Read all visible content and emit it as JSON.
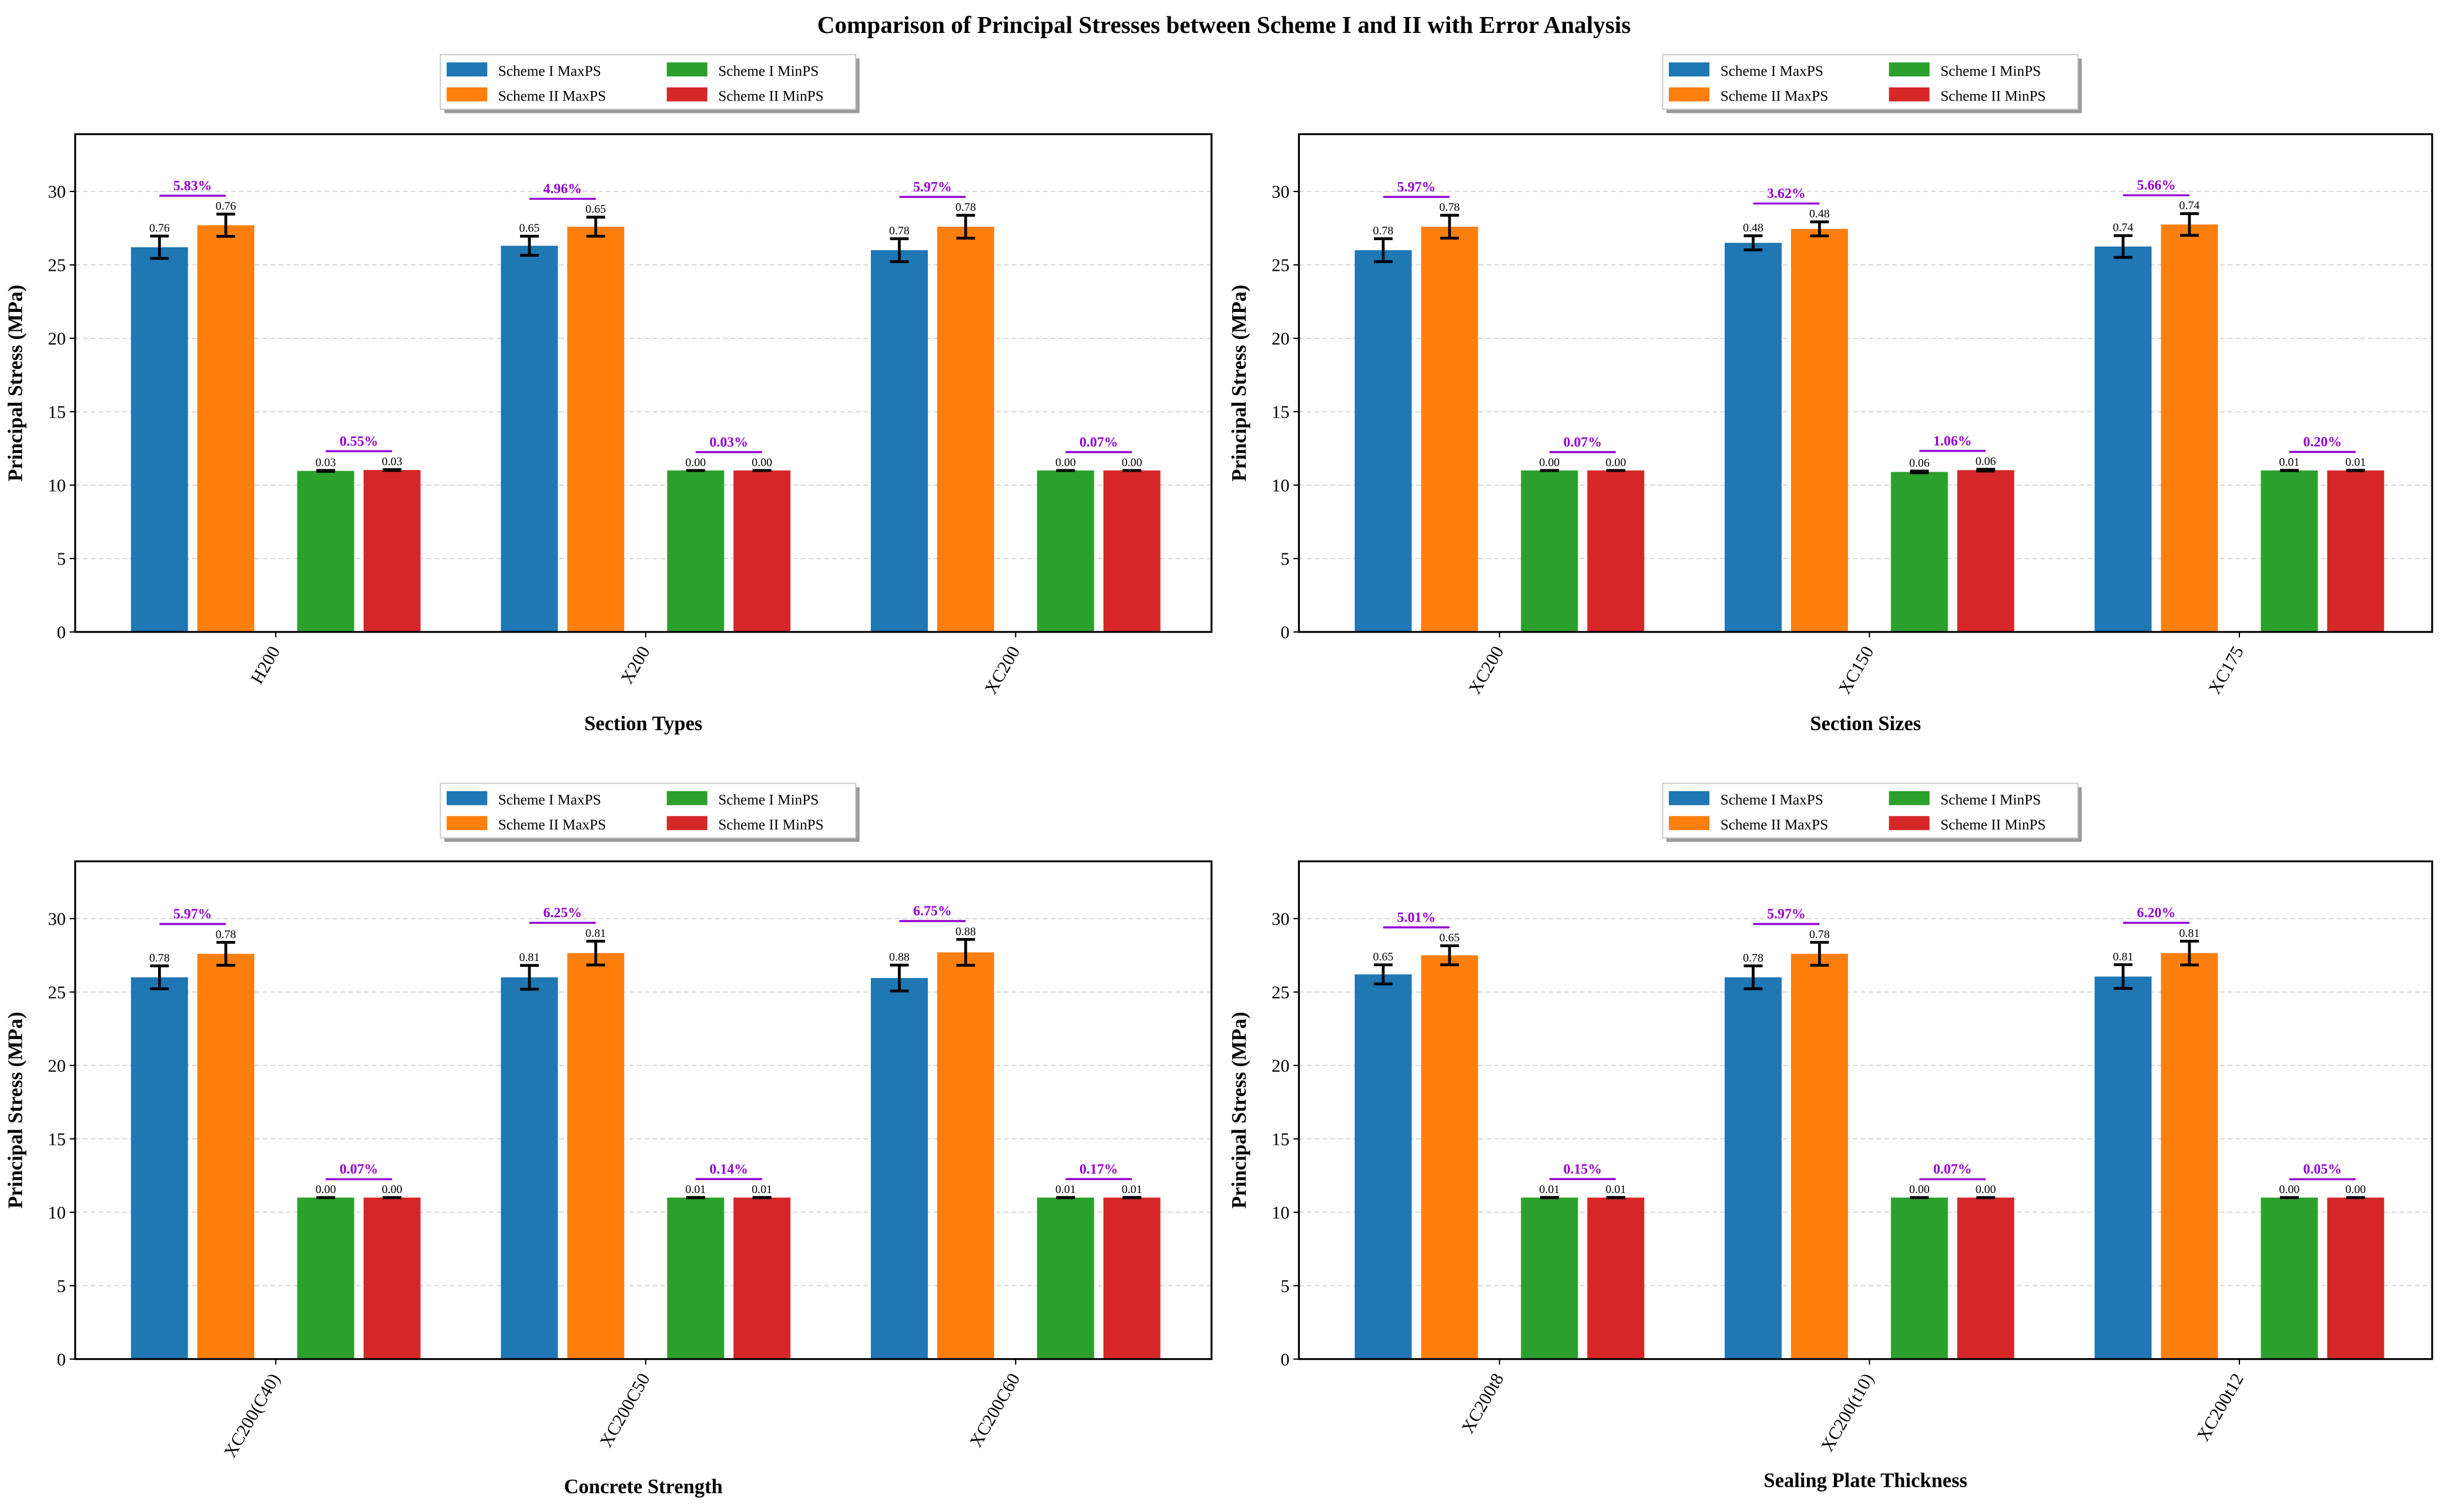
{
  "chart_data": {
    "title": "Comparison of Principal Stresses between Scheme I and II with Error Analysis",
    "type": "bar",
    "colors": {
      "s1max": "#1f77b4",
      "s2max": "#ff7f0e",
      "s1min": "#2ca02c",
      "s2min": "#d62728",
      "pct": "#9400d3"
    },
    "legend": [
      "Scheme I MaxPS",
      "Scheme II MaxPS",
      "Scheme I MinPS",
      "Scheme II MinPS"
    ],
    "legend_placement": "top-center",
    "ylabel": "Principal Stress (MPa)",
    "ylim": [
      0,
      33.9
    ],
    "yticks": [
      "0",
      "5",
      "10",
      "15",
      "20",
      "25",
      "30"
    ],
    "grid": "y dashed",
    "panels": [
      {
        "xlabel": "Section Types",
        "categories": [
          "H200",
          "X200",
          "XC200"
        ],
        "series": [
          {
            "name": "Scheme I MaxPS",
            "values": [
              26.2,
              26.3,
              26.0
            ],
            "errors": [
              0.76,
              0.65,
              0.78
            ],
            "labels": [
              "0.76",
              "0.65",
              "0.78"
            ]
          },
          {
            "name": "Scheme II MaxPS",
            "values": [
              27.7,
              27.6,
              27.6
            ],
            "errors": [
              0.76,
              0.65,
              0.78
            ],
            "labels": [
              "0.76",
              "0.65",
              "0.78"
            ]
          },
          {
            "name": "Scheme I MinPS",
            "values": [
              10.97,
              11.0,
              11.0
            ],
            "errors": [
              0.03,
              0.0,
              0.0
            ],
            "labels": [
              "0.03",
              "0.00",
              "0.00"
            ]
          },
          {
            "name": "Scheme II MinPS",
            "values": [
              11.03,
              11.0,
              11.0
            ],
            "errors": [
              0.03,
              0.0,
              0.0
            ],
            "labels": [
              "0.03",
              "0.00",
              "0.00"
            ]
          }
        ],
        "max_diff": [
          "5.83%",
          "4.96%",
          "5.97%"
        ],
        "min_diff": [
          "0.55%",
          "0.03%",
          "0.07%"
        ]
      },
      {
        "xlabel": "Section Sizes",
        "categories": [
          "XC200",
          "XC150",
          "XC175"
        ],
        "series": [
          {
            "name": "Scheme I MaxPS",
            "values": [
              26.0,
              26.5,
              26.25
            ],
            "errors": [
              0.78,
              0.48,
              0.74
            ],
            "labels": [
              "0.78",
              "0.48",
              "0.74"
            ]
          },
          {
            "name": "Scheme II MaxPS",
            "values": [
              27.6,
              27.45,
              27.75
            ],
            "errors": [
              0.78,
              0.48,
              0.74
            ],
            "labels": [
              "0.78",
              "0.48",
              "0.74"
            ]
          },
          {
            "name": "Scheme I MinPS",
            "values": [
              11.0,
              10.9,
              11.0
            ],
            "errors": [
              0.0,
              0.06,
              0.01
            ],
            "labels": [
              "0.00",
              "0.06",
              "0.01"
            ]
          },
          {
            "name": "Scheme II MinPS",
            "values": [
              11.0,
              11.02,
              11.0
            ],
            "errors": [
              0.0,
              0.06,
              0.01
            ],
            "labels": [
              "0.00",
              "0.06",
              "0.01"
            ]
          }
        ],
        "max_diff": [
          "5.97%",
          "3.62%",
          "5.66%"
        ],
        "min_diff": [
          "0.07%",
          "1.06%",
          "0.20%"
        ]
      },
      {
        "xlabel": "Concrete Strength",
        "categories": [
          "XC200(C40)",
          "XC200C50",
          "XC200C60"
        ],
        "series": [
          {
            "name": "Scheme I MaxPS",
            "values": [
              26.0,
              26.0,
              25.95
            ],
            "errors": [
              0.78,
              0.81,
              0.88
            ],
            "labels": [
              "0.78",
              "0.81",
              "0.88"
            ]
          },
          {
            "name": "Scheme II MaxPS",
            "values": [
              27.6,
              27.65,
              27.7
            ],
            "errors": [
              0.78,
              0.81,
              0.88
            ],
            "labels": [
              "0.78",
              "0.81",
              "0.88"
            ]
          },
          {
            "name": "Scheme I MinPS",
            "values": [
              11.0,
              11.0,
              11.0
            ],
            "errors": [
              0.0,
              0.01,
              0.01
            ],
            "labels": [
              "0.00",
              "0.01",
              "0.01"
            ]
          },
          {
            "name": "Scheme II MinPS",
            "values": [
              11.0,
              11.0,
              11.0
            ],
            "errors": [
              0.0,
              0.01,
              0.01
            ],
            "labels": [
              "0.00",
              "0.01",
              "0.01"
            ]
          }
        ],
        "max_diff": [
          "5.97%",
          "6.25%",
          "6.75%"
        ],
        "min_diff": [
          "0.07%",
          "0.14%",
          "0.17%"
        ]
      },
      {
        "xlabel": "Sealing Plate Thickness",
        "categories": [
          "XC200t8",
          "XC200(t10)",
          "XC200t12"
        ],
        "series": [
          {
            "name": "Scheme I MaxPS",
            "values": [
              26.2,
              26.0,
              26.05
            ],
            "errors": [
              0.65,
              0.78,
              0.81
            ],
            "labels": [
              "0.65",
              "0.78",
              "0.81"
            ]
          },
          {
            "name": "Scheme II MaxPS",
            "values": [
              27.5,
              27.6,
              27.65
            ],
            "errors": [
              0.65,
              0.78,
              0.81
            ],
            "labels": [
              "0.65",
              "0.78",
              "0.81"
            ]
          },
          {
            "name": "Scheme I MinPS",
            "values": [
              11.0,
              11.0,
              11.0
            ],
            "errors": [
              0.01,
              0.0,
              0.0
            ],
            "labels": [
              "0.01",
              "0.00",
              "0.00"
            ]
          },
          {
            "name": "Scheme II MinPS",
            "values": [
              11.0,
              11.0,
              11.0
            ],
            "errors": [
              0.01,
              0.0,
              0.0
            ],
            "labels": [
              "0.01",
              "0.00",
              "0.00"
            ]
          }
        ],
        "max_diff": [
          "5.01%",
          "5.97%",
          "6.20%"
        ],
        "min_diff": [
          "0.15%",
          "0.07%",
          "0.05%"
        ]
      }
    ]
  }
}
